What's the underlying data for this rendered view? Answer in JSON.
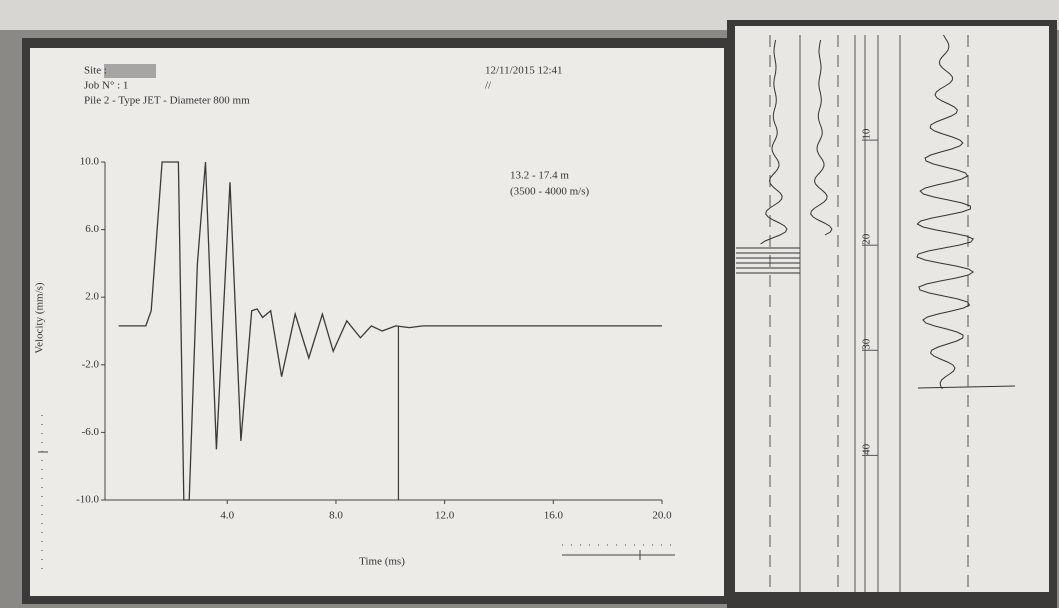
{
  "chart_data": [
    {
      "type": "line",
      "header_texts": [
        "Site :",
        "Job N° : 1",
        "Pile 2 - Type JET - Diameter 800 mm",
        "12/11/2015 12:41",
        "//"
      ],
      "annotations": [
        "13.2 - 17.4 m",
        "(3500 - 4000 m/s)"
      ],
      "y_label": "Velocity (mm/s)",
      "x_label": "Time (ms)",
      "x": [
        0,
        1.0,
        1.2,
        1.6,
        1.8,
        2.2,
        2.4,
        2.6,
        2.9,
        3.2,
        3.6,
        4.1,
        4.5,
        4.9,
        5.1,
        5.3,
        5.6,
        6.0,
        6.5,
        7.0,
        7.5,
        7.9,
        8.4,
        8.9,
        9.3,
        9.7,
        10.2,
        10.7,
        11.2,
        20
      ],
      "values": [
        0.3,
        0.3,
        1.2,
        10,
        10,
        10,
        -10,
        -10,
        4,
        10,
        -7,
        8.8,
        -6.5,
        1.2,
        1.3,
        0.8,
        1.2,
        -2.7,
        1.0,
        -1.6,
        1.0,
        -1.2,
        0.6,
        -0.4,
        0.3,
        0,
        0.3,
        0.2,
        0.3,
        0.3
      ],
      "color": "#3a3a3a",
      "marker_x": 10.3,
      "xlim": [
        -0.5,
        20
      ],
      "ylim": [
        -10,
        10
      ],
      "xticks": [
        {
          "value": 4,
          "label": "4.0"
        },
        {
          "value": 8,
          "label": "8.0"
        },
        {
          "value": 12,
          "label": "12.0"
        },
        {
          "value": 16,
          "label": "16.0"
        },
        {
          "value": 20,
          "label": "20.0"
        }
      ],
      "yticks": [
        {
          "value": 10,
          "label": "10.0"
        },
        {
          "value": 6,
          "label": "6.0"
        },
        {
          "value": 2,
          "label": "2.0"
        },
        {
          "value": -2,
          "label": "-2.0"
        },
        {
          "value": -6,
          "label": "-6.0"
        },
        {
          "value": -10,
          "label": "-10.0"
        }
      ]
    },
    {
      "type": "depth",
      "ylim": [
        0,
        53
      ],
      "yticks": [
        10,
        20,
        30,
        40
      ]
    }
  ]
}
